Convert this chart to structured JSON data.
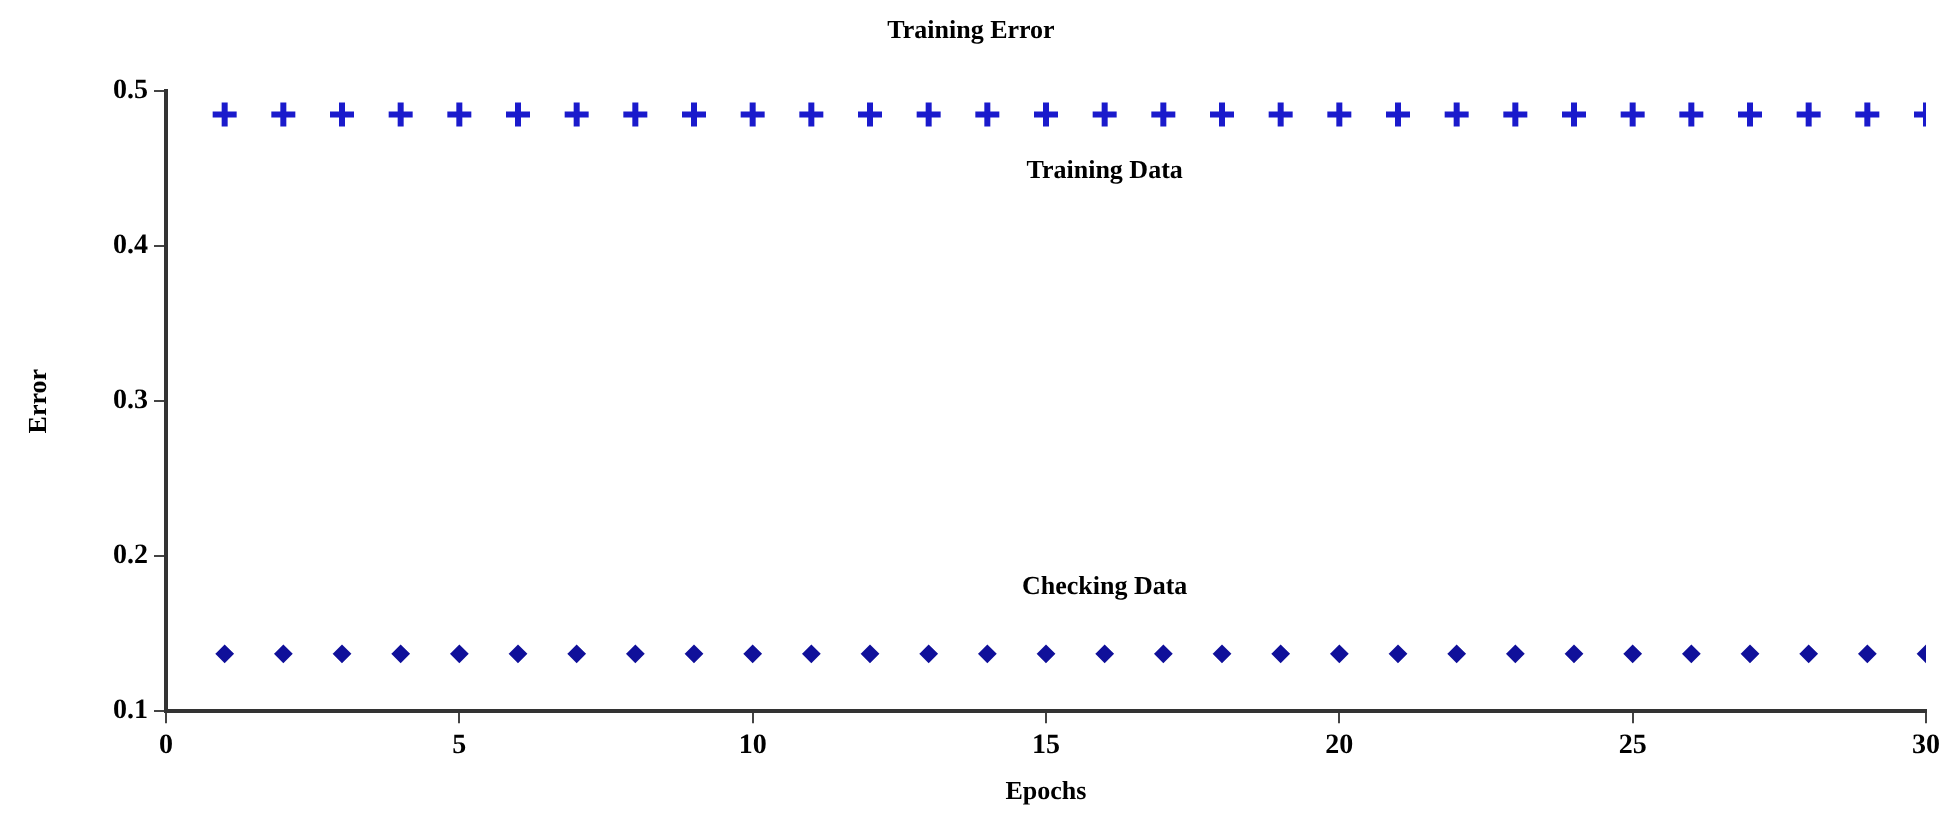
{
  "chart_data": {
    "type": "scatter",
    "title": "Training Error",
    "xlabel": "Epochs",
    "ylabel": "Error",
    "x": [
      1,
      2,
      3,
      4,
      5,
      6,
      7,
      8,
      9,
      10,
      11,
      12,
      13,
      14,
      15,
      16,
      17,
      18,
      19,
      20,
      21,
      22,
      23,
      24,
      25,
      26,
      27,
      28,
      29,
      30
    ],
    "series": [
      {
        "name": "Training Data",
        "color": "#1a1acc",
        "marker": "cross",
        "values": [
          0.485,
          0.485,
          0.485,
          0.485,
          0.485,
          0.485,
          0.485,
          0.485,
          0.485,
          0.485,
          0.485,
          0.485,
          0.485,
          0.485,
          0.485,
          0.485,
          0.485,
          0.485,
          0.485,
          0.485,
          0.485,
          0.485,
          0.485,
          0.485,
          0.485,
          0.485,
          0.485,
          0.485,
          0.485,
          0.485
        ]
      },
      {
        "name": "Checking Data",
        "color": "#10109a",
        "marker": "diamond",
        "values": [
          0.137,
          0.137,
          0.137,
          0.137,
          0.137,
          0.137,
          0.137,
          0.137,
          0.137,
          0.137,
          0.137,
          0.137,
          0.137,
          0.137,
          0.137,
          0.137,
          0.137,
          0.137,
          0.137,
          0.137,
          0.137,
          0.137,
          0.137,
          0.137,
          0.137,
          0.137,
          0.137,
          0.137,
          0.137,
          0.137
        ]
      }
    ],
    "xlim": [
      0,
      30
    ],
    "xticks": [
      0,
      5,
      10,
      15,
      20,
      25,
      30
    ],
    "ylim": [
      0.1,
      0.5
    ],
    "yticks": [
      0.1,
      0.2,
      0.3,
      0.4,
      0.5
    ],
    "grid": false,
    "legend": false
  }
}
